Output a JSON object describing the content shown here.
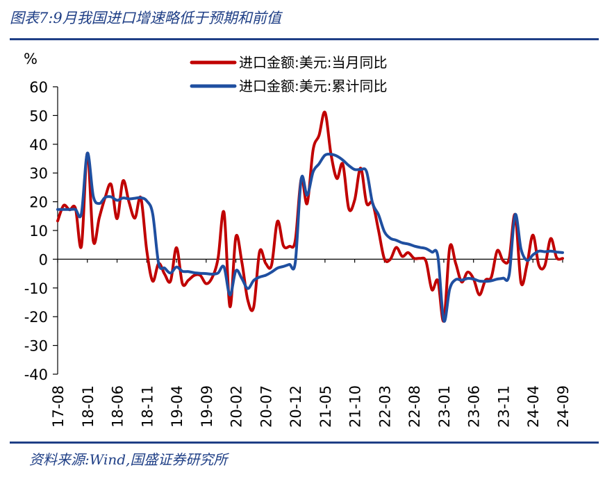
{
  "header": {
    "title": "图表7:9月我国进口增速略低于预期和前值"
  },
  "footer": {
    "source": "资料来源:Wind,国盛证券研究所"
  },
  "colors": {
    "accent": "#1f3f86",
    "series_monthly": "#c00000",
    "series_cumulative": "#1f4fa0"
  },
  "chart_data": {
    "type": "line",
    "ylabel": "%",
    "ylim": [
      -40,
      60
    ],
    "yticks": [
      60,
      50,
      40,
      30,
      20,
      10,
      0,
      -10,
      -20,
      -30,
      -40
    ],
    "xticks": [
      "17-08",
      "18-01",
      "18-06",
      "18-11",
      "19-04",
      "19-09",
      "20-02",
      "20-07",
      "20-12",
      "21-05",
      "21-10",
      "22-03",
      "22-08",
      "23-01",
      "23-06",
      "23-11",
      "24-04",
      "24-09"
    ],
    "grid": false,
    "legend_position": "top-center",
    "x": [
      "17-08",
      "17-09",
      "17-10",
      "17-11",
      "17-12",
      "18-01",
      "18-02",
      "18-03",
      "18-04",
      "18-05",
      "18-06",
      "18-07",
      "18-08",
      "18-09",
      "18-10",
      "18-11",
      "18-12",
      "19-01",
      "19-02",
      "19-03",
      "19-04",
      "19-05",
      "19-06",
      "19-07",
      "19-08",
      "19-09",
      "19-10",
      "19-11",
      "19-12",
      "20-01",
      "20-02",
      "20-03",
      "20-04",
      "20-05",
      "20-06",
      "20-07",
      "20-08",
      "20-09",
      "20-10",
      "20-11",
      "20-12",
      "21-01",
      "21-02",
      "21-03",
      "21-04",
      "21-05",
      "21-06",
      "21-07",
      "21-08",
      "21-09",
      "21-10",
      "21-11",
      "21-12",
      "22-01",
      "22-02",
      "22-03",
      "22-04",
      "22-05",
      "22-06",
      "22-07",
      "22-08",
      "22-09",
      "22-10",
      "22-11",
      "22-12",
      "23-01",
      "23-02",
      "23-03",
      "23-04",
      "23-05",
      "23-06",
      "23-07",
      "23-08",
      "23-09",
      "23-10",
      "23-11",
      "23-12",
      "24-01",
      "24-02",
      "24-03",
      "24-04",
      "24-05",
      "24-06",
      "24-07",
      "24-08",
      "24-09"
    ],
    "series": [
      {
        "name": "进口金额:美元:当月同比",
        "values": [
          13.3,
          18.7,
          17.2,
          17.7,
          4.5,
          36.9,
          6.3,
          14.4,
          21.5,
          26.0,
          14.1,
          27.3,
          20.0,
          14.3,
          21.4,
          3.0,
          -7.6,
          -1.5,
          -5.2,
          -7.6,
          4.0,
          -8.5,
          -7.3,
          -5.6,
          -5.6,
          -8.5,
          -6.4,
          0.3,
          16.3,
          -16.5,
          7.8,
          -0.9,
          -14.2,
          -16.7,
          2.7,
          -1.4,
          -2.1,
          13.2,
          4.7,
          4.5,
          6.5,
          28.0,
          19.4,
          38.1,
          43.1,
          51.1,
          36.7,
          28.1,
          33.1,
          17.6,
          20.6,
          31.7,
          19.5,
          19.6,
          10.1,
          0.1,
          0.0,
          4.1,
          1.0,
          2.3,
          0.3,
          0.3,
          -0.7,
          -10.6,
          -7.5,
          -21.4,
          4.2,
          -1.4,
          -7.9,
          -4.5,
          -6.8,
          -12.4,
          -7.3,
          -6.2,
          3.0,
          -0.6,
          0.2,
          15.5,
          -8.2,
          -1.9,
          8.4,
          -2.1,
          -2.3,
          7.2,
          0.5,
          0.3
        ]
      },
      {
        "name": "进口金额:美元:累计同比",
        "values": [
          17.3,
          17.3,
          17.3,
          17.3,
          15.9,
          36.9,
          21.9,
          19.4,
          21.5,
          21.7,
          20.5,
          21.3,
          21.0,
          21.2,
          21.4,
          20.3,
          15.8,
          -1.5,
          -3.1,
          -4.8,
          -2.7,
          -4.2,
          -4.3,
          -4.7,
          -4.9,
          -5.0,
          -5.2,
          -4.8,
          -2.7,
          -12.5,
          -4.0,
          -6.7,
          -10.2,
          -7.4,
          -6.2,
          -5.6,
          -4.5,
          -3.1,
          -2.5,
          -1.8,
          -1.1,
          28.0,
          22.3,
          30.4,
          33.2,
          36.2,
          36.5,
          35.9,
          34.5,
          32.6,
          31.2,
          31.2,
          30.4,
          19.6,
          15.5,
          9.6,
          7.3,
          6.6,
          5.7,
          5.3,
          4.6,
          4.1,
          3.7,
          2.5,
          1.0,
          -21.4,
          -10.3,
          -7.1,
          -7.3,
          -6.7,
          -6.9,
          -7.6,
          -7.7,
          -7.5,
          -6.9,
          -6.6,
          -5.5,
          15.5,
          3.5,
          -0.4,
          1.5,
          2.8,
          2.6,
          2.8,
          2.5,
          2.3
        ]
      }
    ]
  }
}
